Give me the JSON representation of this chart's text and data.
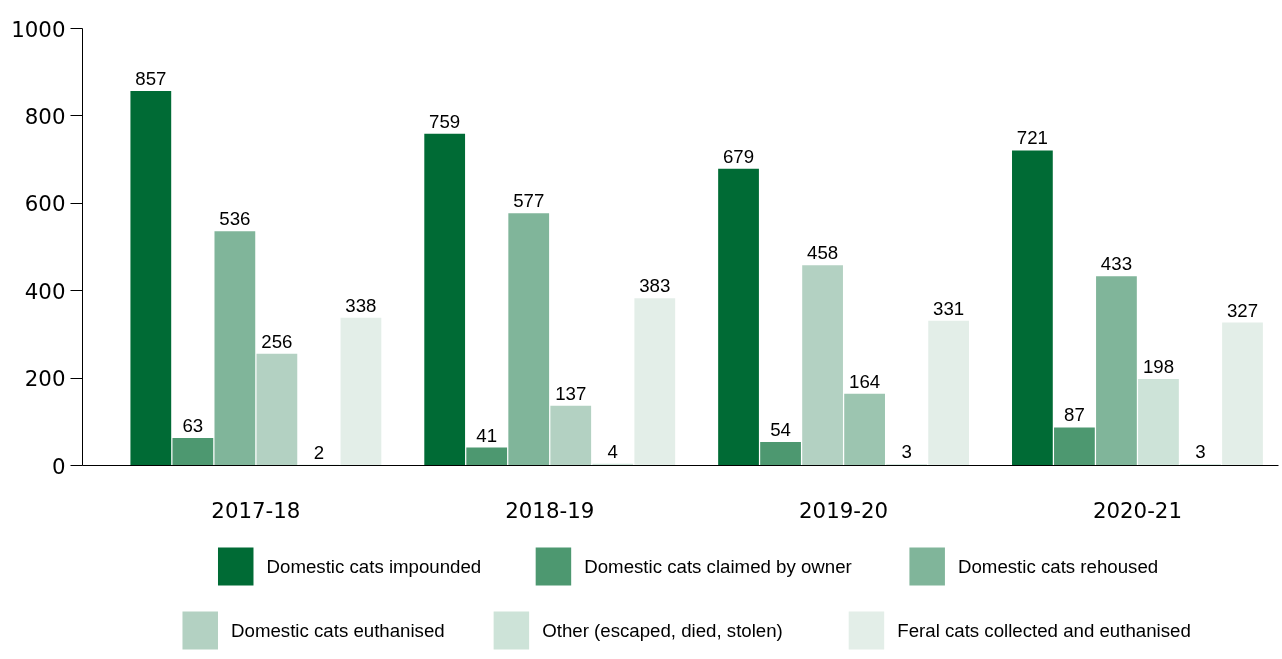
{
  "chart_data": {
    "type": "bar",
    "categories": [
      "2017-18",
      "2018-19",
      "2019-20",
      "2020-21"
    ],
    "series": [
      {
        "name": "Domestic cats impounded",
        "color": "#006b35",
        "values": [
          857,
          759,
          679,
          721
        ]
      },
      {
        "name": "Domestic cats claimed by owner",
        "color": "#4d9870",
        "values": [
          63,
          41,
          54,
          87
        ]
      },
      {
        "name": "Domestic cats rehoused",
        "color": "#80b59a",
        "values": [
          536,
          577,
          458,
          433
        ],
        "colors": [
          "#80b59a",
          "#80b59a",
          "#b3d1c2",
          "#80b59a"
        ]
      },
      {
        "name": "Domestic cats euthanised",
        "color": "#b3d1c2",
        "values": [
          256,
          137,
          164,
          198
        ],
        "colors": [
          "#b3d1c2",
          "#b3d1c2",
          "#9cc5b0",
          "#cde3d8"
        ]
      },
      {
        "name": "Other (escaped, died, stolen)",
        "color": "#cde3d8",
        "values": [
          2,
          4,
          3,
          3
        ]
      },
      {
        "name": "Feral cats collected and euthanised",
        "color": "#e3eee8",
        "values": [
          338,
          383,
          331,
          327
        ]
      }
    ],
    "ylim": [
      0,
      1000
    ],
    "yticks": [
      0,
      200,
      400,
      600,
      800,
      1000
    ],
    "data_labels": true,
    "legend": "bottom"
  }
}
